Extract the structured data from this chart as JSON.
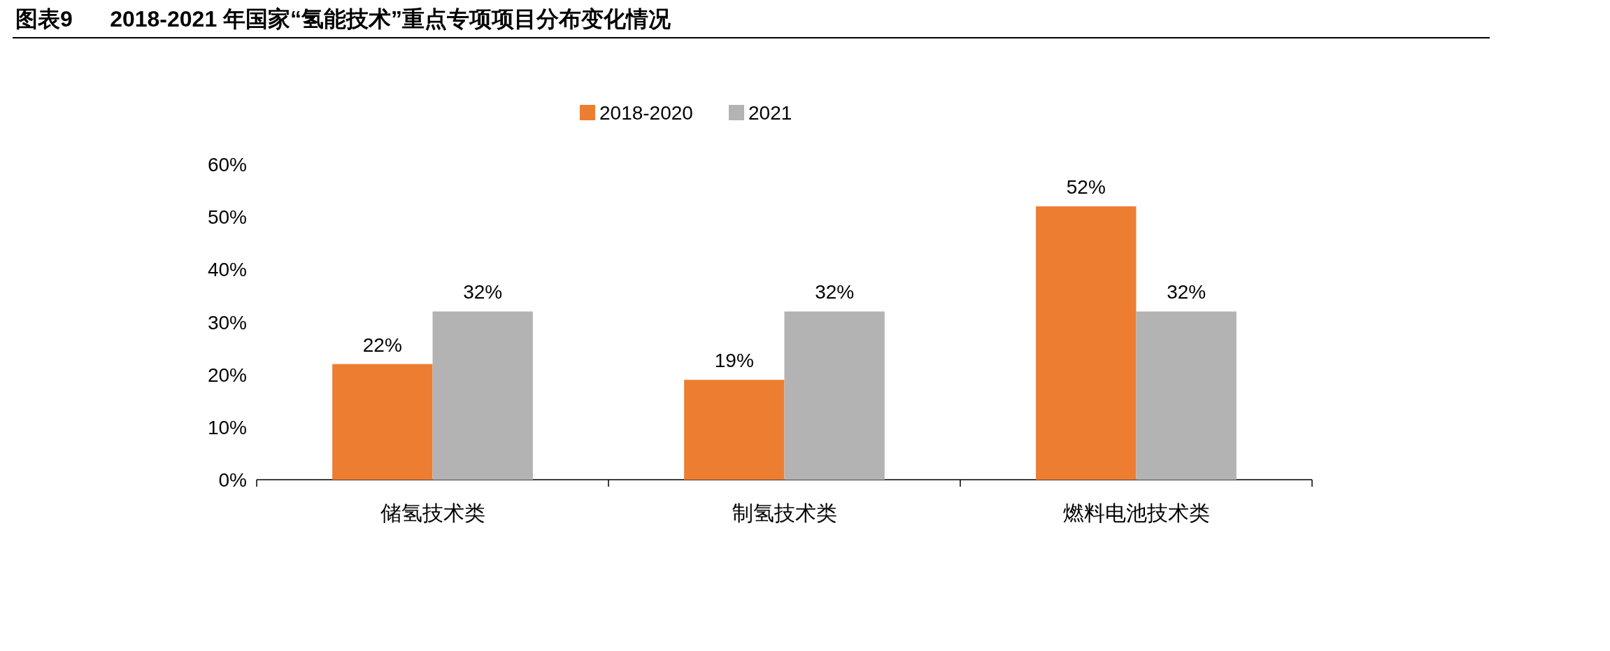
{
  "chart_data": {
    "type": "bar",
    "title": "图表9      2018-2021 年国家“氢能技术”重点专项项目分布变化情况",
    "categories": [
      "储氢技术类",
      "制氢技术类",
      "燃料电池技术类"
    ],
    "series": [
      {
        "name": "2018-2020",
        "color": "#ed7d31",
        "values": [
          22,
          19,
          52
        ],
        "value_labels": [
          "22%",
          "19%",
          "52%"
        ]
      },
      {
        "name": "2021",
        "color": "#b3b3b3",
        "values": [
          32,
          32,
          32
        ],
        "value_labels": [
          "32%",
          "32%",
          "32%"
        ]
      }
    ],
    "ylim": [
      0,
      60
    ],
    "yticks": [
      {
        "value": 0,
        "label": "0%"
      },
      {
        "value": 10,
        "label": "10%"
      },
      {
        "value": 20,
        "label": "20%"
      },
      {
        "value": 30,
        "label": "30%"
      },
      {
        "value": 40,
        "label": "40%"
      },
      {
        "value": 50,
        "label": "50%"
      },
      {
        "value": 60,
        "label": "60%"
      }
    ],
    "legend": "top"
  }
}
